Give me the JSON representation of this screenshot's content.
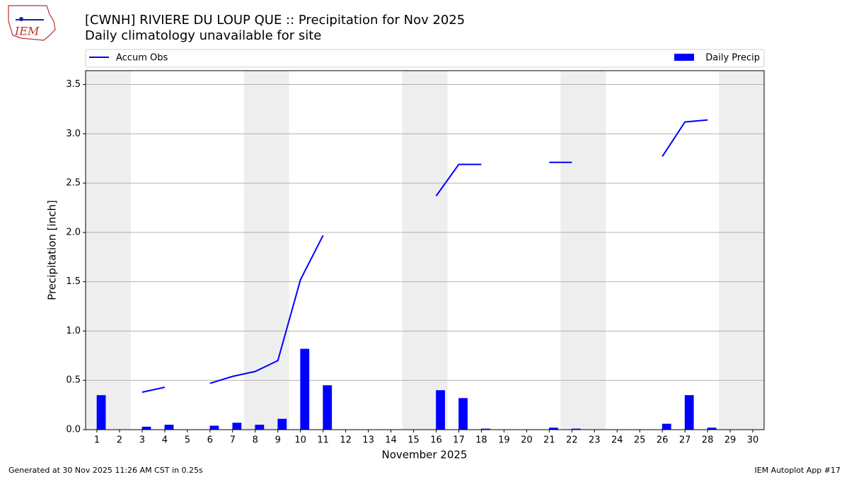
{
  "chart_data": {
    "type": "bar",
    "title": "[CWNH] RIVIERE DU LOUP  QUE :: Precipitation for Nov 2025",
    "subtitle": "Daily climatology unavailable for site",
    "x_label": "November 2025",
    "y_label": "Precipitation [inch]",
    "x": [
      1,
      2,
      3,
      4,
      5,
      6,
      7,
      8,
      9,
      10,
      11,
      12,
      13,
      14,
      15,
      16,
      17,
      18,
      19,
      20,
      21,
      22,
      23,
      24,
      25,
      26,
      27,
      28,
      29,
      30
    ],
    "series": [
      {
        "name": "Accum Obs",
        "type": "line",
        "color": "#0000ff",
        "values": [
          null,
          null,
          0.38,
          0.43,
          null,
          0.47,
          0.54,
          0.59,
          0.7,
          1.52,
          1.97,
          null,
          null,
          null,
          null,
          2.37,
          2.69,
          2.69,
          null,
          null,
          2.71,
          2.71,
          null,
          null,
          null,
          2.77,
          3.12,
          3.14,
          null,
          null
        ]
      },
      {
        "name": "Daily Precip",
        "type": "bar",
        "color": "#0000ff",
        "values": [
          0.35,
          0,
          0.03,
          0.05,
          0,
          0.04,
          0.07,
          0.05,
          0.11,
          0.82,
          0.45,
          0,
          0,
          0,
          0,
          0.4,
          0.32,
          0.01,
          0,
          0,
          0.02,
          0.01,
          0,
          0,
          0,
          0.06,
          0.35,
          0.02,
          0,
          0
        ]
      }
    ],
    "xlim": [
      0.5,
      30.5
    ],
    "xticks": [
      1,
      2,
      3,
      4,
      5,
      6,
      7,
      8,
      9,
      10,
      11,
      12,
      13,
      14,
      15,
      16,
      17,
      18,
      19,
      20,
      21,
      22,
      23,
      24,
      25,
      26,
      27,
      28,
      29,
      30
    ],
    "ylim": [
      0,
      3.64
    ],
    "yticks": [
      {
        "value": 0,
        "label": "0.0"
      },
      0.5,
      {
        "value": 1,
        "label": "1.0"
      },
      1.5,
      {
        "value": 2,
        "label": "2.0"
      },
      2.5,
      {
        "value": 3,
        "label": "3.0"
      },
      3.5
    ],
    "grid": true,
    "shaded_spans": [
      [
        0.5,
        2.5
      ],
      [
        7.5,
        9.5
      ],
      [
        14.5,
        16.5
      ],
      [
        21.5,
        23.5
      ],
      [
        28.5,
        30.5
      ]
    ],
    "shade_color": "#eeeeee"
  },
  "footer": {
    "left": "Generated at 30 Nov 2025 11:26 AM CST in 0.25s",
    "right": "IEM Autoplot App #17"
  },
  "logo": {
    "text": "IEM"
  }
}
